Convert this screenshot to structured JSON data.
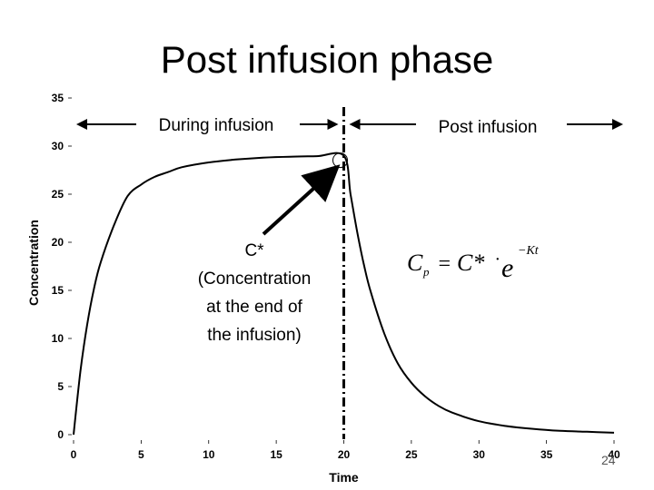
{
  "title": "Post infusion phase",
  "chart_data": {
    "type": "line",
    "xlabel": "Time",
    "ylabel": "Concentration",
    "xlim": [
      0,
      40
    ],
    "ylim": [
      0,
      35
    ],
    "x_ticks": [
      0,
      5,
      10,
      15,
      20,
      25,
      30,
      35,
      40
    ],
    "y_ticks": [
      0,
      5,
      10,
      15,
      20,
      25,
      30,
      35
    ],
    "grid": false,
    "series": [
      {
        "x": [
          0,
          0.5,
          1,
          1.5,
          2,
          3,
          4,
          5,
          6,
          7,
          8,
          10,
          12,
          14,
          16,
          18,
          20,
          20.5,
          21,
          21.5,
          22,
          23,
          24,
          25,
          26,
          27,
          28,
          30,
          32,
          34,
          36,
          38,
          40
        ],
        "y": [
          0,
          6.5,
          11.4,
          15.1,
          17.9,
          21.8,
          24.8,
          26.0,
          26.8,
          27.3,
          27.8,
          28.3,
          28.6,
          28.8,
          28.9,
          28.95,
          29.0,
          25.0,
          21.0,
          17.6,
          14.8,
          10.5,
          7.4,
          5.4,
          4.0,
          3.0,
          2.3,
          1.4,
          0.9,
          0.6,
          0.4,
          0.3,
          0.2
        ]
      }
    ],
    "infusion_end_x": 20,
    "phase_labels": {
      "during": "During infusion",
      "post": "Post infusion"
    },
    "annotation": {
      "lines": [
        "C*",
        "(Concentration",
        "at the end of",
        "the infusion)"
      ],
      "x": 20,
      "y": 29
    },
    "formula": {
      "lhs": "C",
      "lhs_sub": "p",
      "eq": "=",
      "rhs": "C*",
      "dot": "·",
      "base": "e",
      "exponent": "−Kt"
    }
  },
  "page_number": "24"
}
